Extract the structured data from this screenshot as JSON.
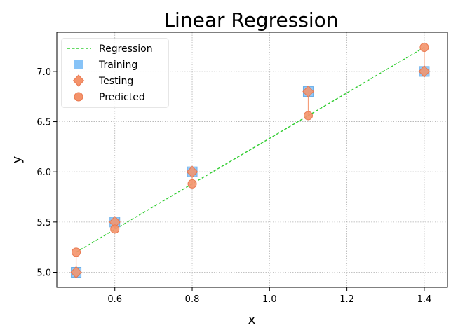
{
  "chart_data": {
    "type": "scatter",
    "title": "Linear Regression",
    "xlabel": "x",
    "ylabel": "y",
    "xlim": [
      0.45,
      1.46
    ],
    "ylim": [
      4.85,
      7.39
    ],
    "xticks": [
      "0.6",
      "0.8",
      "1.0",
      "1.2",
      "1.4"
    ],
    "yticks": [
      "5.0",
      "5.5",
      "6.0",
      "6.5",
      "7.0"
    ],
    "grid": true,
    "legend_position": "upper-left",
    "series": [
      {
        "name": "Regression",
        "kind": "line",
        "color": "#32cd32",
        "x": [
          0.5,
          1.4
        ],
        "y": [
          5.2,
          7.24
        ]
      },
      {
        "name": "Training",
        "kind": "marker-square",
        "color": "#87c3f7",
        "x": [
          0.5,
          0.6,
          0.8,
          1.1,
          1.4
        ],
        "y": [
          5.0,
          5.5,
          6.0,
          6.8,
          7.0
        ]
      },
      {
        "name": "Testing",
        "kind": "marker-diamond",
        "color": "#f4936b",
        "x": [
          0.5,
          0.6,
          0.8,
          1.1,
          1.4
        ],
        "y": [
          5.0,
          5.5,
          6.0,
          6.8,
          7.0
        ]
      },
      {
        "name": "Predicted",
        "kind": "marker-circle",
        "color": "#f4936b",
        "x": [
          0.5,
          0.6,
          0.8,
          1.1,
          1.4
        ],
        "y": [
          5.2,
          5.43,
          5.88,
          6.56,
          7.24
        ]
      }
    ]
  }
}
